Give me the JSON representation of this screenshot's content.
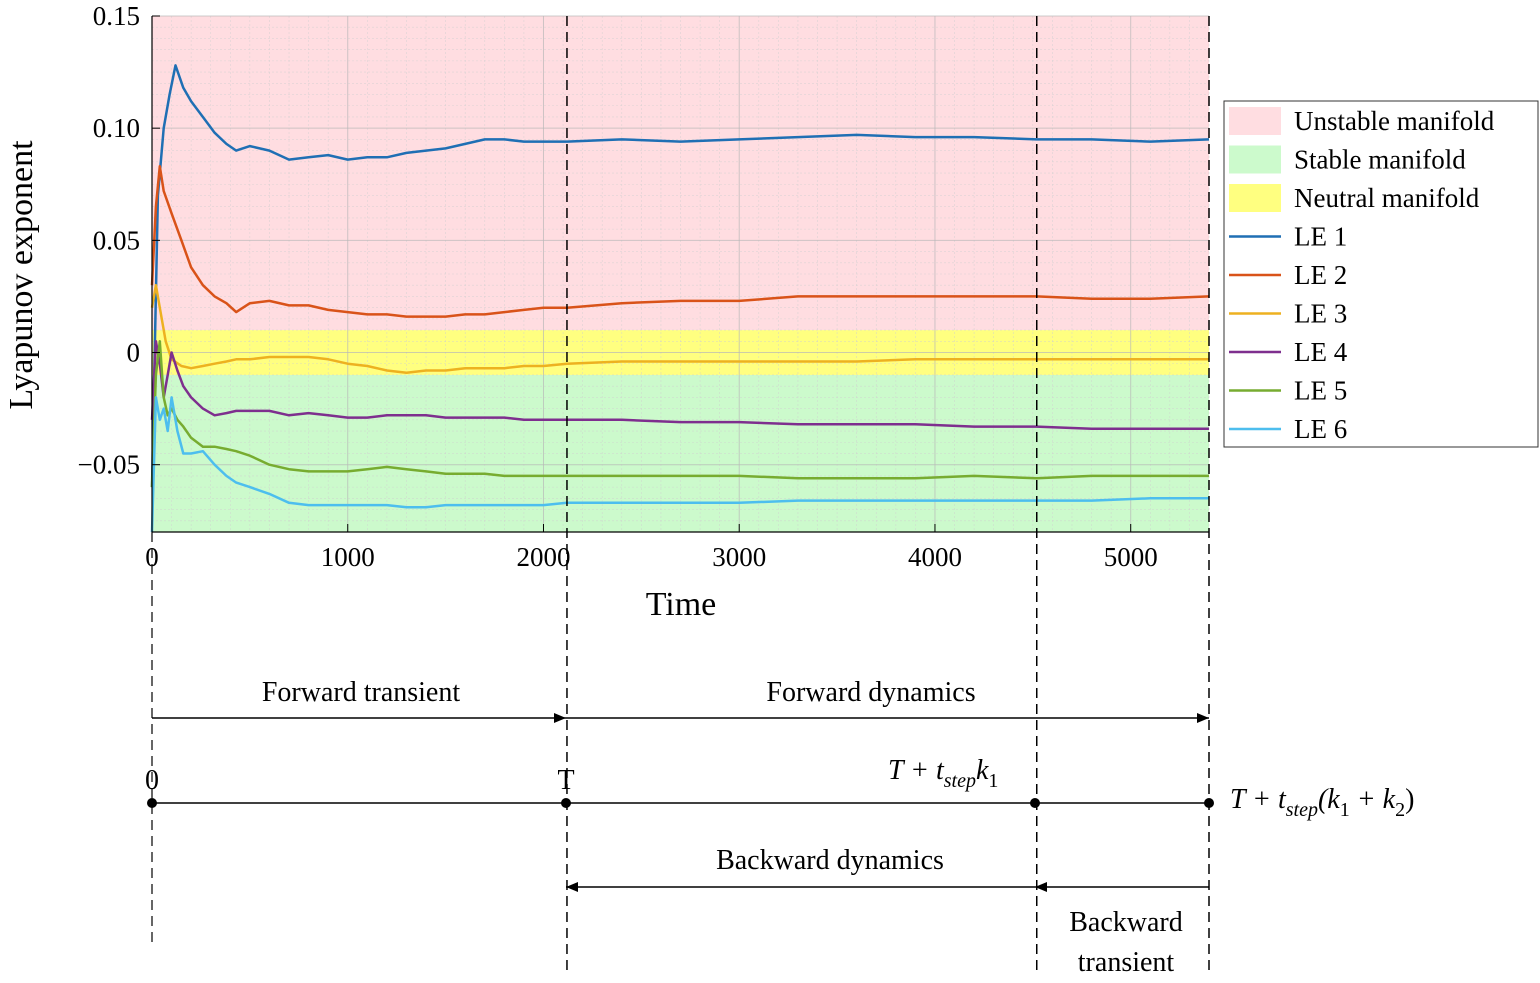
{
  "chart_data": {
    "type": "line",
    "xlabel": "Time",
    "ylabel": "Lyapunov exponent",
    "xlim": [
      0,
      5400
    ],
    "ylim": [
      -0.08,
      0.15
    ],
    "xticks": [
      0,
      1000,
      2000,
      3000,
      4000,
      5000
    ],
    "xtick_labels": [
      "0",
      "1000",
      "2000",
      "3000",
      "4000",
      "5000"
    ],
    "yticks": [
      -0.05,
      0,
      0.05,
      0.1,
      0.15
    ],
    "ytick_labels": [
      "−0.05",
      "0",
      "0.05",
      "0.10",
      "0.15"
    ],
    "grid": true,
    "legend_position": "right",
    "regions": [
      {
        "name": "Unstable manifold",
        "y_from": 0.01,
        "y_to": 0.15,
        "color": "#ffdde1"
      },
      {
        "name": "Stable manifold",
        "y_from": -0.08,
        "y_to": -0.01,
        "color": "#ccfacc"
      },
      {
        "name": "Neutral manifold",
        "y_from": -0.01,
        "y_to": 0.01,
        "color": "#ffff80"
      }
    ],
    "vlines": [
      2120,
      4520,
      5400
    ],
    "series": [
      {
        "name": "LE 1",
        "color": "#1f6fb4",
        "x": [
          0,
          30,
          60,
          90,
          120,
          160,
          200,
          260,
          320,
          380,
          430,
          500,
          600,
          700,
          800,
          900,
          1000,
          1100,
          1200,
          1300,
          1400,
          1500,
          1600,
          1700,
          1800,
          1900,
          2000,
          2120,
          2400,
          2700,
          3000,
          3300,
          3600,
          3900,
          4200,
          4520,
          4800,
          5100,
          5400
        ],
        "y": [
          -0.06,
          0.07,
          0.1,
          0.115,
          0.128,
          0.118,
          0.112,
          0.105,
          0.098,
          0.093,
          0.09,
          0.092,
          0.09,
          0.086,
          0.087,
          0.088,
          0.086,
          0.087,
          0.087,
          0.089,
          0.09,
          0.091,
          0.093,
          0.095,
          0.095,
          0.094,
          0.094,
          0.094,
          0.095,
          0.094,
          0.095,
          0.096,
          0.097,
          0.096,
          0.096,
          0.095,
          0.095,
          0.094,
          0.095
        ]
      },
      {
        "name": "LE 2",
        "color": "#d95319",
        "x": [
          0,
          20,
          40,
          60,
          100,
          150,
          200,
          260,
          320,
          380,
          430,
          500,
          600,
          700,
          800,
          900,
          1000,
          1100,
          1200,
          1300,
          1400,
          1500,
          1600,
          1700,
          1800,
          1900,
          2000,
          2120,
          2400,
          2700,
          3000,
          3300,
          3600,
          3900,
          4200,
          4520,
          4800,
          5100,
          5400
        ],
        "y": [
          0.03,
          0.065,
          0.083,
          0.072,
          0.062,
          0.05,
          0.038,
          0.03,
          0.025,
          0.022,
          0.018,
          0.022,
          0.023,
          0.021,
          0.021,
          0.019,
          0.018,
          0.017,
          0.017,
          0.016,
          0.016,
          0.016,
          0.017,
          0.017,
          0.018,
          0.019,
          0.02,
          0.02,
          0.022,
          0.023,
          0.023,
          0.025,
          0.025,
          0.025,
          0.025,
          0.025,
          0.024,
          0.024,
          0.025
        ]
      },
      {
        "name": "LE 3",
        "color": "#edb120",
        "x": [
          0,
          20,
          40,
          70,
          100,
          150,
          200,
          260,
          320,
          380,
          430,
          500,
          600,
          700,
          800,
          900,
          1000,
          1100,
          1200,
          1300,
          1400,
          1500,
          1600,
          1700,
          1800,
          1900,
          2000,
          2120,
          2400,
          2700,
          3000,
          3300,
          3600,
          3900,
          4200,
          4520,
          4800,
          5100,
          5400
        ],
        "y": [
          0.02,
          0.03,
          0.02,
          0.005,
          -0.003,
          -0.006,
          -0.007,
          -0.006,
          -0.005,
          -0.004,
          -0.003,
          -0.003,
          -0.002,
          -0.002,
          -0.002,
          -0.003,
          -0.005,
          -0.006,
          -0.008,
          -0.009,
          -0.008,
          -0.008,
          -0.007,
          -0.007,
          -0.007,
          -0.006,
          -0.006,
          -0.005,
          -0.004,
          -0.004,
          -0.004,
          -0.004,
          -0.004,
          -0.003,
          -0.003,
          -0.003,
          -0.003,
          -0.003,
          -0.003
        ]
      },
      {
        "name": "LE 4",
        "color": "#7e2f8e",
        "x": [
          0,
          20,
          40,
          60,
          80,
          100,
          130,
          160,
          200,
          260,
          320,
          380,
          430,
          500,
          600,
          700,
          800,
          900,
          1000,
          1100,
          1200,
          1300,
          1400,
          1500,
          1600,
          1700,
          1800,
          1900,
          2000,
          2120,
          2400,
          2700,
          3000,
          3300,
          3600,
          3900,
          4200,
          4520,
          4800,
          5100,
          5400
        ],
        "y": [
          -0.03,
          0.005,
          -0.005,
          -0.02,
          -0.01,
          0.0,
          -0.008,
          -0.015,
          -0.02,
          -0.025,
          -0.028,
          -0.027,
          -0.026,
          -0.026,
          -0.026,
          -0.028,
          -0.027,
          -0.028,
          -0.029,
          -0.029,
          -0.028,
          -0.028,
          -0.028,
          -0.029,
          -0.029,
          -0.029,
          -0.029,
          -0.03,
          -0.03,
          -0.03,
          -0.03,
          -0.031,
          -0.031,
          -0.032,
          -0.032,
          -0.032,
          -0.033,
          -0.033,
          -0.034,
          -0.034,
          -0.034
        ]
      },
      {
        "name": "LE 5",
        "color": "#77ac30",
        "x": [
          0,
          20,
          40,
          60,
          80,
          100,
          130,
          160,
          200,
          260,
          320,
          380,
          430,
          500,
          600,
          700,
          800,
          900,
          1000,
          1100,
          1200,
          1300,
          1400,
          1500,
          1600,
          1700,
          1800,
          1900,
          2000,
          2120,
          2400,
          2700,
          3000,
          3300,
          3600,
          3900,
          4200,
          4520,
          4800,
          5100,
          5400
        ],
        "y": [
          -0.06,
          -0.01,
          0.005,
          -0.02,
          -0.028,
          -0.025,
          -0.03,
          -0.033,
          -0.038,
          -0.042,
          -0.042,
          -0.043,
          -0.044,
          -0.046,
          -0.05,
          -0.052,
          -0.053,
          -0.053,
          -0.053,
          -0.052,
          -0.051,
          -0.052,
          -0.053,
          -0.054,
          -0.054,
          -0.054,
          -0.055,
          -0.055,
          -0.055,
          -0.055,
          -0.055,
          -0.055,
          -0.055,
          -0.056,
          -0.056,
          -0.056,
          -0.055,
          -0.056,
          -0.055,
          -0.055,
          -0.055
        ]
      },
      {
        "name": "LE 6",
        "color": "#4dbeee",
        "x": [
          0,
          20,
          40,
          60,
          80,
          100,
          130,
          160,
          200,
          260,
          320,
          380,
          430,
          500,
          600,
          700,
          800,
          900,
          1000,
          1100,
          1200,
          1300,
          1400,
          1500,
          1600,
          1700,
          1800,
          1900,
          2000,
          2120,
          2400,
          2700,
          3000,
          3300,
          3600,
          3900,
          4200,
          4520,
          4800,
          5100,
          5400
        ],
        "y": [
          -0.08,
          -0.02,
          -0.03,
          -0.025,
          -0.035,
          -0.02,
          -0.035,
          -0.045,
          -0.045,
          -0.044,
          -0.05,
          -0.055,
          -0.058,
          -0.06,
          -0.063,
          -0.067,
          -0.068,
          -0.068,
          -0.068,
          -0.068,
          -0.068,
          -0.069,
          -0.069,
          -0.068,
          -0.068,
          -0.068,
          -0.068,
          -0.068,
          -0.068,
          -0.067,
          -0.067,
          -0.067,
          -0.067,
          -0.066,
          -0.066,
          -0.066,
          -0.066,
          -0.066,
          -0.066,
          -0.065,
          -0.065
        ]
      }
    ]
  },
  "annotations": {
    "forward_transient": "Forward transient",
    "forward_dynamics": "Forward dynamics",
    "backward_dynamics": "Backward dynamics",
    "backward_transient_line1": "Backward",
    "backward_transient_line2": "transient",
    "point_0": "0",
    "point_T": "T",
    "point_k1": {
      "base": "T + t",
      "sub": "step",
      "tail": "k",
      "tail_sub": "1"
    },
    "point_k1k2": {
      "base": "T + t",
      "sub": "step",
      "mid": "(k",
      "mid_sub": "1",
      "plus": " + k",
      "plus_sub": "2",
      "close": ")"
    }
  }
}
